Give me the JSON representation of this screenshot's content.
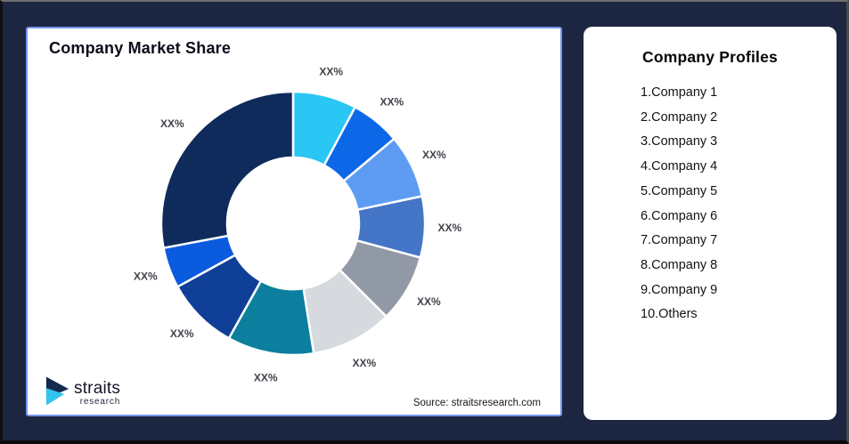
{
  "market_share_card": {
    "title": "Company Market Share",
    "source": "Source: straitsresearch.com"
  },
  "logo": {
    "brand": "straits",
    "sub": "research",
    "mark_navy": "#16294F",
    "mark_cyan": "#33C3F0"
  },
  "profiles_card": {
    "title": "Company Profiles",
    "items": [
      "1.Company 1",
      "2.Company 2",
      "3.Company 3",
      "4.Company 4",
      "5.Company 5",
      "6.Company 6",
      "7.Company 7",
      "8.Company 8",
      "9.Company 9",
      "10.Others"
    ]
  },
  "chart_data": {
    "type": "pie",
    "subtype": "donut",
    "title": "Company Market Share",
    "series_names": [
      "Company 1",
      "Company 2",
      "Company 3",
      "Company 4",
      "Company 5",
      "Company 6",
      "Company 7",
      "Company 8",
      "Company 9",
      "Others"
    ],
    "values": [
      7.8,
      6.1,
      7.8,
      7.5,
      8.3,
      10.0,
      10.6,
      8.9,
      5.0,
      28.0
    ],
    "displayed_labels": [
      "XX%",
      "XX%",
      "XX%",
      "XX%",
      "XX%",
      "XX%",
      "XX%",
      "XX%",
      "XX%",
      "XX%"
    ],
    "colors": [
      "#2AC6F4",
      "#0D68E8",
      "#5E9CF4",
      "#4475C6",
      "#9099A5",
      "#D6DADF",
      "#0C7F9E",
      "#0F3F96",
      "#0B5BDE",
      "#0E2B5C"
    ],
    "start_angle_deg": 0,
    "direction": "clockwise",
    "legend": "none",
    "label_color": "#3F4349",
    "slice_gap_color": "#FFFFFF"
  }
}
